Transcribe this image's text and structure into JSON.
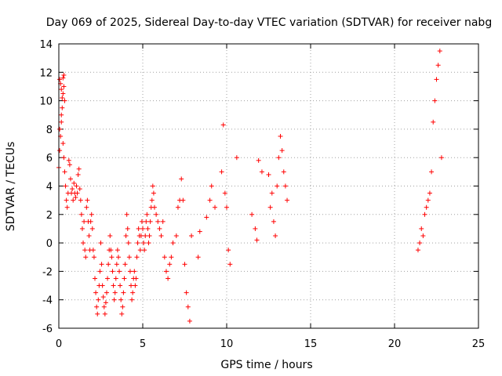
{
  "chart_data": {
    "type": "scatter",
    "title": "Day 069 of 2025, Sidereal Day-to-day VTEC variation (SDTVAR) for receiver nabg",
    "xlabel": "GPS time / hours",
    "ylabel": "SDTVAR / TECUs",
    "xlim": [
      0,
      25
    ],
    "ylim": [
      -6,
      14
    ],
    "xticks": [
      0,
      5,
      10,
      15,
      20,
      25
    ],
    "yticks": [
      -6,
      -4,
      -2,
      0,
      2,
      4,
      6,
      8,
      10,
      12,
      14
    ],
    "grid": true,
    "marker": "+",
    "color": "#ff0000",
    "series": [
      {
        "name": "nabg",
        "x": [
          0.0,
          0.05,
          0.1,
          0.15,
          0.2,
          0.25,
          0.3,
          0.05,
          0.1,
          0.15,
          0.2,
          0.25,
          0.3,
          0.35,
          0.05,
          0.15,
          0.25,
          0.3,
          0.35,
          0.4,
          0.45,
          0.5,
          0.55,
          0.6,
          0.65,
          0.7,
          0.75,
          0.8,
          0.85,
          0.9,
          0.95,
          1.0,
          1.05,
          1.1,
          1.15,
          1.2,
          1.25,
          1.3,
          1.35,
          1.4,
          1.45,
          1.5,
          1.55,
          1.6,
          1.65,
          1.7,
          1.75,
          1.8,
          1.85,
          1.9,
          1.95,
          2.0,
          2.05,
          2.1,
          2.15,
          2.2,
          2.25,
          2.3,
          2.35,
          2.4,
          2.45,
          2.5,
          2.55,
          2.6,
          2.65,
          2.7,
          2.75,
          2.8,
          2.85,
          2.9,
          2.95,
          3.0,
          3.05,
          3.1,
          3.15,
          3.2,
          3.25,
          3.3,
          3.35,
          3.4,
          3.45,
          3.5,
          3.55,
          3.6,
          3.65,
          3.7,
          3.75,
          3.8,
          3.85,
          3.9,
          3.95,
          4.0,
          4.05,
          4.1,
          4.15,
          4.2,
          4.25,
          4.3,
          4.35,
          4.4,
          4.45,
          4.5,
          4.55,
          4.6,
          4.65,
          4.7,
          4.75,
          4.8,
          4.85,
          4.9,
          4.95,
          5.0,
          5.05,
          5.1,
          5.15,
          5.2,
          5.25,
          5.3,
          5.35,
          5.4,
          5.45,
          5.5,
          5.55,
          5.6,
          5.65,
          5.7,
          5.8,
          5.9,
          6.0,
          6.1,
          6.2,
          6.3,
          6.4,
          6.5,
          6.6,
          6.7,
          6.8,
          7.0,
          7.1,
          7.2,
          7.3,
          7.4,
          7.5,
          7.6,
          7.7,
          7.8,
          7.9,
          8.3,
          8.4,
          8.8,
          9.0,
          9.1,
          9.3,
          9.7,
          9.8,
          9.9,
          10.0,
          10.1,
          10.2,
          10.6,
          11.5,
          11.7,
          11.8,
          11.9,
          12.1,
          12.5,
          12.6,
          12.7,
          12.8,
          12.9,
          13.0,
          13.1,
          13.2,
          13.3,
          13.4,
          13.5,
          13.6,
          21.4,
          21.5,
          21.6,
          21.7,
          21.8,
          21.9,
          22.0,
          22.1,
          22.2,
          22.3,
          22.4,
          22.5,
          22.6,
          22.7,
          22.8
        ],
        "y": [
          5.3,
          6.5,
          7.5,
          8.5,
          9.5,
          10.5,
          11.8,
          11.5,
          11.2,
          10.8,
          10.2,
          11.6,
          11.0,
          10.0,
          8.0,
          9.0,
          7.0,
          6.0,
          5.0,
          4.0,
          3.0,
          2.5,
          3.5,
          5.8,
          5.5,
          4.5,
          3.5,
          3.8,
          3.0,
          4.2,
          3.5,
          3.2,
          4.0,
          3.5,
          4.8,
          5.2,
          3.8,
          3.0,
          2.0,
          1.0,
          0.0,
          1.5,
          -0.5,
          -1.0,
          2.5,
          3.0,
          1.5,
          0.5,
          -0.5,
          1.5,
          2.0,
          1.0,
          -0.5,
          -1.0,
          -2.5,
          -3.5,
          -4.5,
          -5.0,
          -4.0,
          -3.0,
          -2.0,
          0.0,
          -1.5,
          -3.0,
          -3.8,
          -4.5,
          -5.0,
          -4.2,
          -3.5,
          -2.5,
          -1.5,
          -0.5,
          0.5,
          -0.5,
          -1.0,
          -2.0,
          -3.0,
          -4.0,
          -3.5,
          -2.5,
          -1.5,
          -0.5,
          -1.0,
          -2.0,
          -3.0,
          -4.0,
          -5.0,
          -4.5,
          -3.5,
          -2.5,
          -1.5,
          0.5,
          2.0,
          1.0,
          0.0,
          -1.0,
          -2.0,
          -3.0,
          -4.0,
          -3.5,
          -2.5,
          -2.0,
          -3.0,
          -2.5,
          -1.0,
          0.0,
          1.0,
          0.5,
          -0.5,
          0.5,
          1.5,
          1.0,
          0.0,
          -0.5,
          0.5,
          1.5,
          2.0,
          1.0,
          0.0,
          0.5,
          1.5,
          2.5,
          3.0,
          4.0,
          3.5,
          2.5,
          2.0,
          1.5,
          1.0,
          0.5,
          1.5,
          -1.0,
          -2.0,
          -2.5,
          -1.5,
          -1.0,
          0.0,
          0.5,
          2.5,
          3.0,
          4.5,
          3.0,
          -1.5,
          -3.5,
          -4.5,
          -5.5,
          0.5,
          -1.0,
          0.8,
          1.8,
          3.0,
          4.0,
          2.5,
          5.0,
          8.3,
          3.5,
          2.5,
          -0.5,
          -1.5,
          6.0,
          2.0,
          1.0,
          0.2,
          5.8,
          5.0,
          4.8,
          2.5,
          3.5,
          1.5,
          0.5,
          4.0,
          6.0,
          7.5,
          6.5,
          5.0,
          4.0,
          3.0,
          -0.5,
          0.0,
          1.0,
          0.5,
          2.0,
          2.5,
          3.0,
          3.5,
          5.0,
          8.5,
          10.0,
          11.5,
          12.5,
          13.5,
          6.0
        ]
      }
    ]
  }
}
